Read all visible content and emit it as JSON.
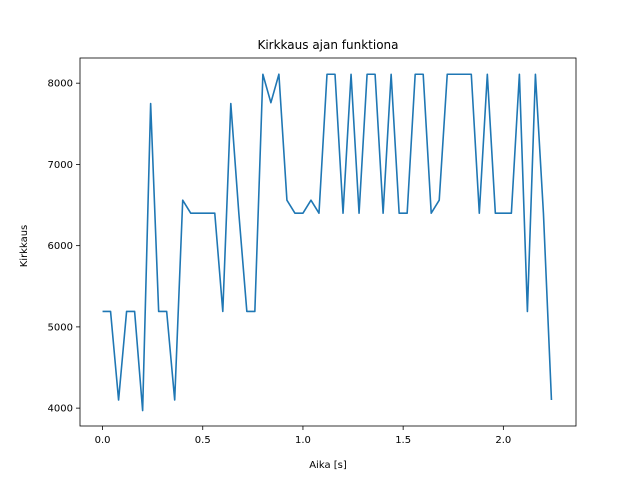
{
  "chart_data": {
    "type": "line",
    "title": "Kirkkaus ajan funktiona",
    "xlabel": "Aika [s]",
    "ylabel": "Kirkkaus",
    "xlim": [
      -0.1125,
      2.3625
    ],
    "ylim": [
      3780,
      8310
    ],
    "xticks": [
      0.0,
      0.5,
      1.0,
      1.5,
      2.0
    ],
    "xtick_labels": [
      "0.0",
      "0.5",
      "1.0",
      "1.5",
      "2.0"
    ],
    "yticks": [
      4000,
      5000,
      6000,
      7000,
      8000
    ],
    "ytick_labels": [
      "4000",
      "5000",
      "6000",
      "7000",
      "8000"
    ],
    "grid": false,
    "series": [
      {
        "color": "#1f77b4",
        "x": [
          0.0,
          0.04,
          0.08,
          0.12,
          0.16,
          0.2,
          0.24,
          0.28,
          0.32,
          0.36,
          0.4,
          0.44,
          0.48,
          0.52,
          0.56,
          0.6,
          0.64,
          0.68,
          0.72,
          0.76,
          0.8,
          0.84,
          0.88,
          0.92,
          0.96,
          1.0,
          1.04,
          1.08,
          1.12,
          1.16,
          1.2,
          1.24,
          1.28,
          1.32,
          1.36,
          1.4,
          1.44,
          1.48,
          1.52,
          1.56,
          1.6,
          1.64,
          1.68,
          1.72,
          1.76,
          1.8,
          1.84,
          1.88,
          1.92,
          1.96,
          2.0,
          2.04,
          2.08,
          2.12,
          2.16,
          2.2,
          2.24
        ],
        "values": [
          5190,
          5190,
          4100,
          5190,
          5190,
          3970,
          7750,
          5190,
          5190,
          4100,
          6560,
          6400,
          6400,
          6400,
          6400,
          5190,
          7750,
          6400,
          5190,
          5190,
          8110,
          7760,
          8110,
          6560,
          6400,
          6400,
          6560,
          6400,
          8110,
          8110,
          6400,
          8110,
          6400,
          8110,
          8110,
          6400,
          8110,
          6400,
          6400,
          8110,
          8110,
          6400,
          6560,
          8110,
          8110,
          8110,
          8110,
          6400,
          8110,
          6400,
          6400,
          6400,
          8110,
          5190,
          8110,
          6400,
          4100
        ]
      }
    ]
  }
}
